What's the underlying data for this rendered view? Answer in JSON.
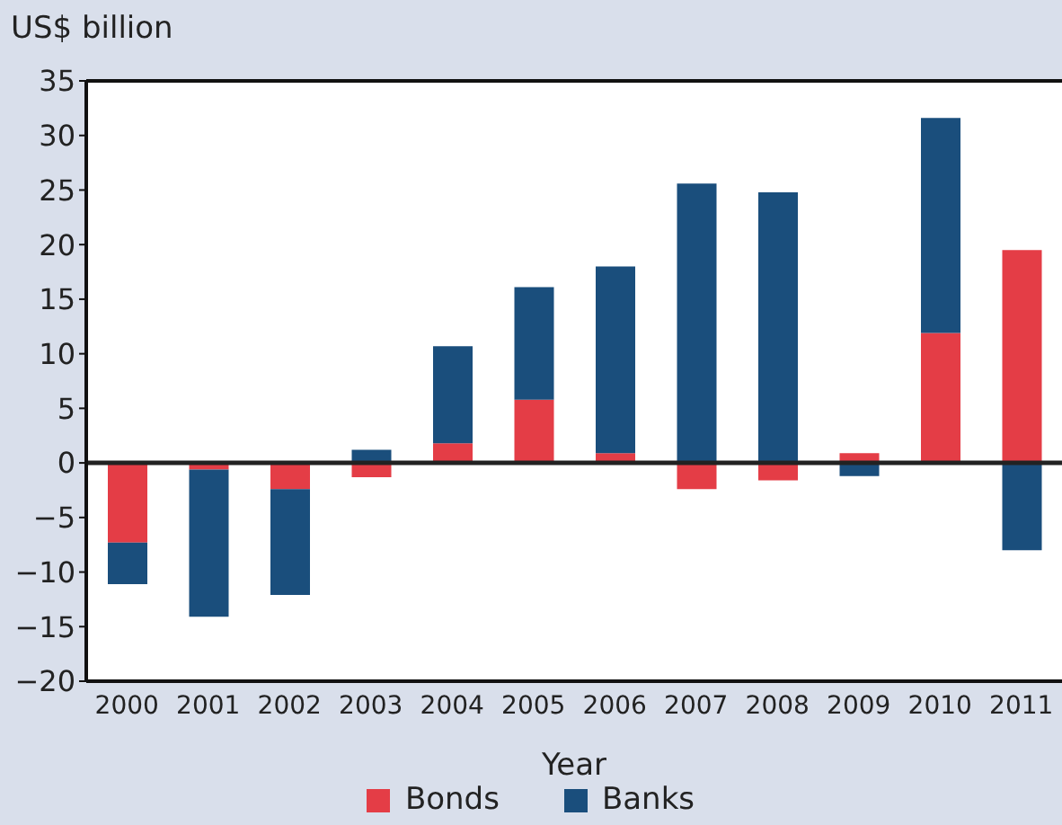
{
  "chart_data": {
    "type": "bar",
    "ylabel": "US$ billion",
    "xlabel": "Year",
    "categories": [
      "2000",
      "2001",
      "2002",
      "2003",
      "2004",
      "2005",
      "2006",
      "2007",
      "2008",
      "2009",
      "2010",
      "2011"
    ],
    "stacked": true,
    "series": [
      {
        "name": "Bonds",
        "color": "#e43d46",
        "values": [
          -7.3,
          -0.6,
          -2.4,
          -1.3,
          1.8,
          5.8,
          0.9,
          -2.4,
          -1.6,
          0.9,
          11.9,
          19.5
        ]
      },
      {
        "name": "Banks",
        "color": "#1a4e7c",
        "values": [
          -3.8,
          -13.5,
          -9.7,
          1.2,
          8.9,
          10.3,
          17.1,
          25.6,
          24.8,
          -1.2,
          19.7,
          -8.0
        ]
      }
    ],
    "ylim": [
      -20,
      35
    ],
    "yticks": [
      -20,
      -15,
      -10,
      -5,
      0,
      5,
      10,
      15,
      20,
      25,
      30,
      35
    ],
    "legend": "bottom"
  }
}
